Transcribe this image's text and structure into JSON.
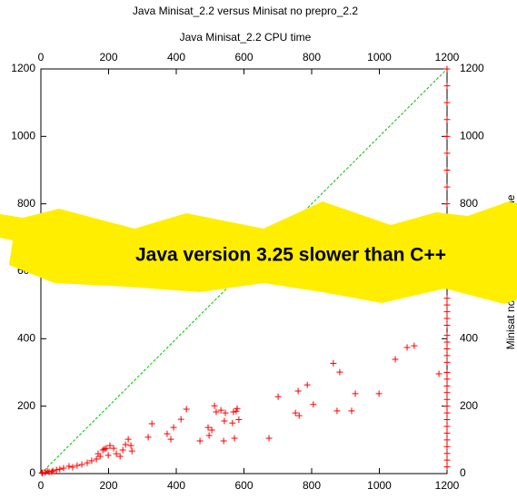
{
  "chart_data": {
    "type": "scatter",
    "title": "Java Minisat_2.2 versus Minisat no prepro_2.2",
    "xlabel": "Java Minisat_2.2 CPU time",
    "ylabel": "Minisat no prepro_2.2 CPU time",
    "annotation": "Java version 3.25 slower than C++",
    "color": "#ff0000",
    "xlim": [
      0,
      1200
    ],
    "ylim": [
      0,
      1200
    ],
    "xticks": [
      0,
      200,
      400,
      600,
      800,
      1000,
      1200
    ],
    "yticks": [
      0,
      200,
      400,
      600,
      800,
      1000,
      1200
    ],
    "grid": false,
    "x": [
      1103,
      1082,
      1047,
      864,
      883,
      1176,
      760,
      787,
      805,
      763,
      752,
      701,
      929,
      999,
      875,
      918,
      674,
      513,
      518,
      532,
      545,
      580,
      569,
      577,
      566,
      585,
      542,
      494,
      505,
      497,
      540,
      572,
      470,
      430,
      414,
      373,
      384,
      392,
      328,
      317,
      258,
      266,
      269,
      250,
      242,
      234,
      223,
      215,
      204,
      199,
      188,
      175,
      164,
      150,
      137,
      121,
      107,
      94,
      83,
      67,
      56,
      46,
      35,
      24,
      13,
      5,
      3,
      19,
      32,
      193,
      183,
      169,
      1200,
      1200,
      1200,
      1200,
      1200,
      1200,
      1200,
      1200,
      1200,
      1200,
      1200,
      1200,
      1200,
      1200,
      1200,
      1200,
      1200,
      1200,
      1200,
      1200,
      1200,
      1200,
      1200,
      1200,
      1200,
      1200,
      1200,
      1200,
      1200,
      1200,
      1200,
      1200,
      1200,
      1200,
      1200,
      1200,
      1200,
      1200,
      1200,
      1200
    ],
    "values": [
      379,
      374,
      339,
      327,
      301,
      296,
      245,
      263,
      205,
      172,
      180,
      228,
      237,
      237,
      186,
      186,
      105,
      201,
      183,
      188,
      180,
      193,
      183,
      185,
      150,
      160,
      156,
      137,
      129,
      113,
      97,
      105,
      97,
      191,
      161,
      118,
      102,
      137,
      148,
      108,
      102,
      83,
      67,
      86,
      70,
      51,
      59,
      75,
      83,
      54,
      73,
      51,
      43,
      38,
      32,
      27,
      24,
      19,
      22,
      16,
      13,
      11,
      8,
      5,
      3,
      3,
      1,
      8,
      5,
      75,
      70,
      59,
      1200,
      1150,
      1100,
      1050,
      1000,
      950,
      900,
      850,
      800,
      760,
      720,
      690,
      660,
      600,
      560,
      520,
      500,
      480,
      460,
      440,
      410,
      390,
      370,
      350,
      330,
      300,
      280,
      260,
      240,
      220,
      200,
      180,
      160,
      140,
      120,
      100,
      80,
      60,
      40,
      20
    ]
  }
}
